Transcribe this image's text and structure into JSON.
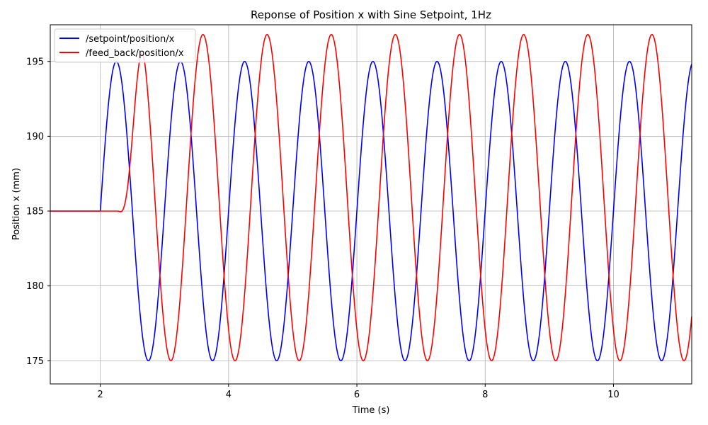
{
  "chart_data": {
    "type": "line",
    "title": "Reponse of Position x with Sine Setpoint, 1Hz",
    "xlabel": "Time (s)",
    "ylabel": "Position x (mm)",
    "xlim": [
      1.22,
      11.22
    ],
    "ylim": [
      173.45,
      197.45
    ],
    "x_ticks": [
      2,
      4,
      6,
      8,
      10
    ],
    "y_ticks": [
      175,
      180,
      185,
      190,
      195
    ],
    "grid": true,
    "legend_position": "top-left",
    "series": [
      {
        "name": "/setpoint/position/x",
        "color": "#0000ff",
        "model": "sine",
        "hold_value": 185,
        "start_time": 2.0,
        "amplitude": 10,
        "frequency_hz": 1,
        "note_points": [
          [
            1.22,
            185
          ],
          [
            2.0,
            185
          ],
          [
            2.25,
            195
          ],
          [
            2.75,
            175
          ],
          [
            3.25,
            195
          ],
          [
            3.75,
            175
          ],
          [
            4.25,
            195
          ],
          [
            4.75,
            175
          ],
          [
            5.25,
            195
          ],
          [
            5.75,
            175
          ],
          [
            6.25,
            195
          ],
          [
            6.75,
            175
          ],
          [
            7.25,
            195
          ],
          [
            7.75,
            175
          ],
          [
            8.25,
            195
          ],
          [
            8.75,
            175
          ],
          [
            9.25,
            195
          ],
          [
            9.75,
            175
          ],
          [
            10.25,
            195
          ],
          [
            10.75,
            175
          ],
          [
            11.22,
            194.9
          ]
        ]
      },
      {
        "name": "/feed_back/position/x",
        "color": "#ff0000",
        "model": "delayed_sine",
        "hold_value": 185,
        "start_time": 2.27,
        "delay": 0.35,
        "amplitude": 10.9,
        "frequency_hz": 1,
        "note_points": [
          [
            1.22,
            185
          ],
          [
            2.27,
            185
          ],
          [
            2.6,
            195.2
          ],
          [
            3.1,
            174.3
          ],
          [
            3.6,
            196.0
          ],
          [
            4.1,
            174.3
          ],
          [
            4.6,
            196.0
          ],
          [
            5.1,
            174.3
          ],
          [
            5.6,
            196.0
          ],
          [
            6.1,
            174.3
          ],
          [
            6.6,
            196.0
          ],
          [
            7.1,
            174.3
          ],
          [
            7.6,
            196.0
          ],
          [
            8.1,
            174.3
          ],
          [
            8.6,
            196.0
          ],
          [
            9.1,
            174.3
          ],
          [
            9.6,
            196.0
          ],
          [
            10.1,
            174.3
          ],
          [
            10.6,
            196.0
          ],
          [
            11.1,
            174.3
          ],
          [
            11.22,
            178.0
          ]
        ]
      }
    ]
  }
}
